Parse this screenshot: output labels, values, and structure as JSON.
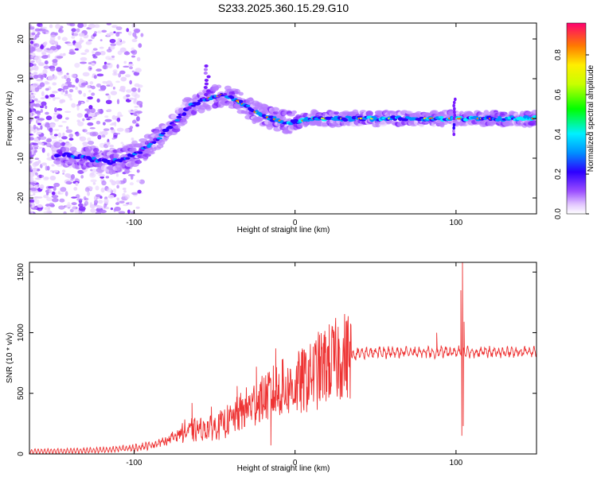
{
  "figure": {
    "title": "S233.2025.360.15.29.G10"
  },
  "chart_data": [
    {
      "type": "heatmap",
      "name": "spectrogram",
      "xlabel": "Height of straight line (km)",
      "ylabel": "Frequency (Hz)",
      "xlim": [
        -165,
        150
      ],
      "ylim": [
        -24,
        24
      ],
      "xticks": [
        -100,
        0,
        100
      ],
      "yticks": [
        -20,
        -10,
        0,
        10,
        20
      ],
      "colorbar": {
        "label": "Normalized spectral amplitude",
        "range": [
          0.0,
          0.96
        ],
        "ticks": [
          "0.0",
          "0.2",
          "0.4",
          "0.6",
          "0.8"
        ],
        "tick_values": [
          0.0,
          0.2,
          0.4,
          0.6,
          0.8
        ]
      },
      "ridge": {
        "x": [
          -145,
          -130,
          -115,
          -105,
          -95,
          -85,
          -75,
          -65,
          -55,
          -45,
          -38,
          -30,
          -22,
          -15,
          -5,
          0,
          10,
          20,
          40,
          60,
          80,
          95,
          100,
          110,
          130,
          148
        ],
        "y": [
          -9,
          -10,
          -11,
          -10,
          -8,
          -5,
          -1,
          3,
          5,
          6,
          5,
          3,
          1,
          0,
          -1,
          -1,
          0,
          0,
          0,
          0,
          0,
          0,
          0,
          0,
          0,
          0
        ]
      }
    },
    {
      "type": "line",
      "name": "snr",
      "xlabel": "Height of straight line (km)",
      "ylabel": "SNR (10 * v/v)",
      "xlim": [
        -165,
        150
      ],
      "ylim": [
        0,
        1580
      ],
      "xticks": [
        -100,
        0,
        100
      ],
      "yticks": [
        0,
        500,
        1000,
        1500
      ],
      "series": [
        {
          "name": "SNR",
          "color": "#ee3333",
          "envelope_x": [
            -165,
            -140,
            -120,
            -100,
            -90,
            -80,
            -70,
            -60,
            -50,
            -40,
            -30,
            -20,
            -10,
            0,
            10,
            20,
            30,
            40,
            60,
            80,
            90,
            100,
            104,
            110,
            130,
            150
          ],
          "envelope_y": [
            20,
            25,
            30,
            50,
            70,
            110,
            180,
            200,
            220,
            280,
            380,
            460,
            520,
            560,
            650,
            740,
            800,
            830,
            840,
            840,
            840,
            840,
            850,
            840,
            840,
            840
          ]
        }
      ]
    }
  ]
}
